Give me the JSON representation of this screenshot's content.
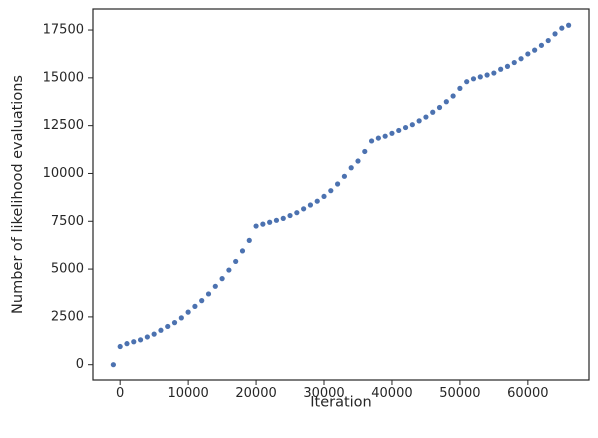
{
  "chart_data": {
    "type": "scatter",
    "title": "",
    "xlabel": "Iteration",
    "ylabel": "Number of likelihood evaluations",
    "xlim": [
      -4000,
      69000
    ],
    "ylim": [
      -800,
      18600
    ],
    "xticks": [
      0,
      10000,
      20000,
      30000,
      40000,
      50000,
      60000
    ],
    "yticks": [
      0,
      2500,
      5000,
      7500,
      10000,
      12500,
      15000,
      17500
    ],
    "grid": false,
    "legend": "none",
    "marker_color": "#4c72b0",
    "series": [
      {
        "x": [
          -1000,
          0,
          1000,
          2000,
          3000,
          4000,
          5000,
          6000,
          7000,
          8000,
          9000,
          10000,
          11000,
          12000,
          13000,
          14000,
          15000,
          16000,
          17000,
          18000,
          19000,
          20000,
          21000,
          22000,
          23000,
          24000,
          25000,
          26000,
          27000,
          28000,
          29000,
          30000,
          31000,
          32000,
          33000,
          34000,
          35000,
          36000,
          37000,
          38000,
          39000,
          40000,
          41000,
          42000,
          43000,
          44000,
          45000,
          46000,
          47000,
          48000,
          49000,
          50000,
          51000,
          52000,
          53000,
          54000,
          55000,
          56000,
          57000,
          58000,
          59000,
          60000,
          61000,
          62000,
          63000,
          64000,
          65000,
          66000
        ],
        "y": [
          0,
          950,
          1100,
          1200,
          1300,
          1450,
          1600,
          1800,
          2000,
          2200,
          2450,
          2750,
          3050,
          3350,
          3700,
          4100,
          4500,
          4950,
          5400,
          5950,
          6500,
          7250,
          7350,
          7450,
          7550,
          7650,
          7800,
          7950,
          8150,
          8350,
          8550,
          8800,
          9100,
          9450,
          9850,
          10300,
          10650,
          11150,
          11700,
          11850,
          11950,
          12100,
          12250,
          12400,
          12550,
          12750,
          12950,
          13200,
          13450,
          13750,
          14050,
          14450,
          14800,
          14950,
          15050,
          15150,
          15250,
          15450,
          15600,
          15800,
          16000,
          16250,
          16450,
          16700,
          16950,
          17300,
          17600,
          17750
        ]
      }
    ]
  }
}
